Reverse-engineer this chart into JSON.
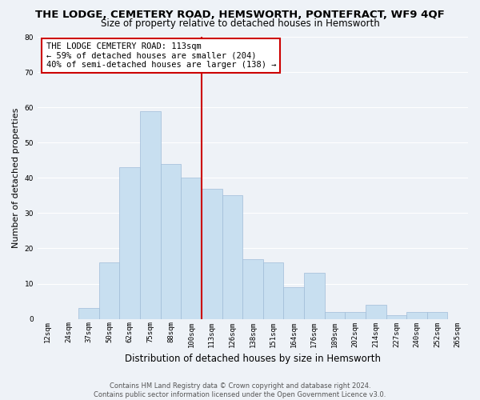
{
  "title": "THE LODGE, CEMETERY ROAD, HEMSWORTH, PONTEFRACT, WF9 4QF",
  "subtitle": "Size of property relative to detached houses in Hemsworth",
  "xlabel": "Distribution of detached houses by size in Hemsworth",
  "ylabel": "Number of detached properties",
  "bar_labels": [
    "12sqm",
    "24sqm",
    "37sqm",
    "50sqm",
    "62sqm",
    "75sqm",
    "88sqm",
    "100sqm",
    "113sqm",
    "126sqm",
    "138sqm",
    "151sqm",
    "164sqm",
    "176sqm",
    "189sqm",
    "202sqm",
    "214sqm",
    "227sqm",
    "240sqm",
    "252sqm",
    "265sqm"
  ],
  "bar_values": [
    0,
    0,
    3,
    16,
    43,
    59,
    44,
    40,
    37,
    35,
    17,
    16,
    9,
    13,
    2,
    2,
    4,
    1,
    2,
    2,
    0
  ],
  "bar_color": "#c8dff0",
  "bar_edge_color": "#a0bcd8",
  "vline_x_index": 8,
  "vline_color": "#cc0000",
  "ylim": [
    0,
    80
  ],
  "yticks": [
    0,
    10,
    20,
    30,
    40,
    50,
    60,
    70,
    80
  ],
  "annotation_title": "THE LODGE CEMETERY ROAD: 113sqm",
  "annotation_line1": "← 59% of detached houses are smaller (204)",
  "annotation_line2": "40% of semi-detached houses are larger (138) →",
  "annotation_box_color": "#ffffff",
  "annotation_box_edge": "#cc0000",
  "footer1": "Contains HM Land Registry data © Crown copyright and database right 2024.",
  "footer2": "Contains public sector information licensed under the Open Government Licence v3.0.",
  "bg_color": "#eef2f7",
  "grid_color": "#ffffff",
  "title_fontsize": 9.5,
  "subtitle_fontsize": 8.5,
  "xlabel_fontsize": 8.5,
  "ylabel_fontsize": 8,
  "tick_fontsize": 6.5,
  "annotation_fontsize": 7.5,
  "footer_fontsize": 6
}
